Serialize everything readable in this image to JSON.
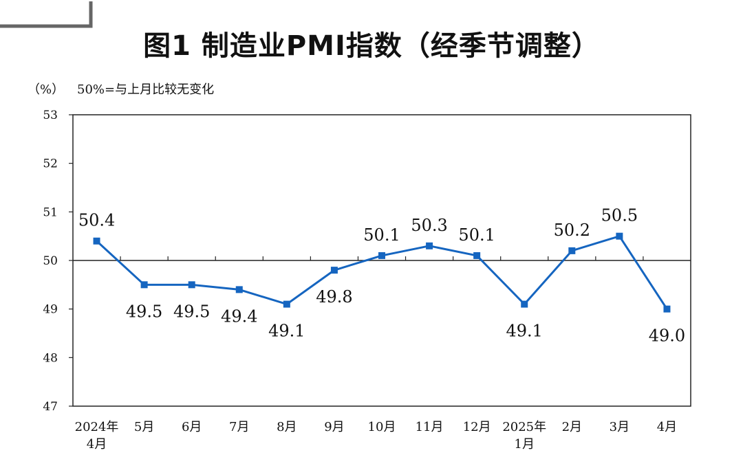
{
  "header": {
    "title": "图1  制造业PMI指数（经季节调整）",
    "unit": "（%）",
    "note": "50%=与上月比较无变化"
  },
  "colors": {
    "series": "#1565c0",
    "axis": "#222222",
    "background": "#ffffff"
  },
  "chart_data": {
    "type": "line",
    "title": "图1  制造业PMI指数（经季节调整）",
    "ylabel": "（%）",
    "annotation": "50%=与上月比较无变化",
    "categories": [
      [
        "2024年",
        "4月"
      ],
      [
        "5月"
      ],
      [
        "6月"
      ],
      [
        "7月"
      ],
      [
        "8月"
      ],
      [
        "9月"
      ],
      [
        "10月"
      ],
      [
        "11月"
      ],
      [
        "12月"
      ],
      [
        "2025年",
        "1月"
      ],
      [
        "2月"
      ],
      [
        "3月"
      ],
      [
        "4月"
      ]
    ],
    "values": [
      50.4,
      49.5,
      49.5,
      49.4,
      49.1,
      49.8,
      50.1,
      50.3,
      50.1,
      49.1,
      50.2,
      50.5,
      49.0
    ],
    "labels": [
      "50.4",
      "49.5",
      "49.5",
      "49.4",
      "49.1",
      "49.8",
      "50.1",
      "50.3",
      "50.1",
      "49.1",
      "50.2",
      "50.5",
      "49.0"
    ],
    "label_positions": [
      "above",
      "below",
      "below",
      "below",
      "below",
      "below",
      "above",
      "above",
      "above",
      "below",
      "above",
      "above",
      "below"
    ],
    "yticks": [
      "47",
      "48",
      "49",
      "50",
      "51",
      "52",
      "53"
    ],
    "ylim": [
      47,
      53
    ],
    "reference_line": 50,
    "grid": false,
    "legend": "none"
  }
}
